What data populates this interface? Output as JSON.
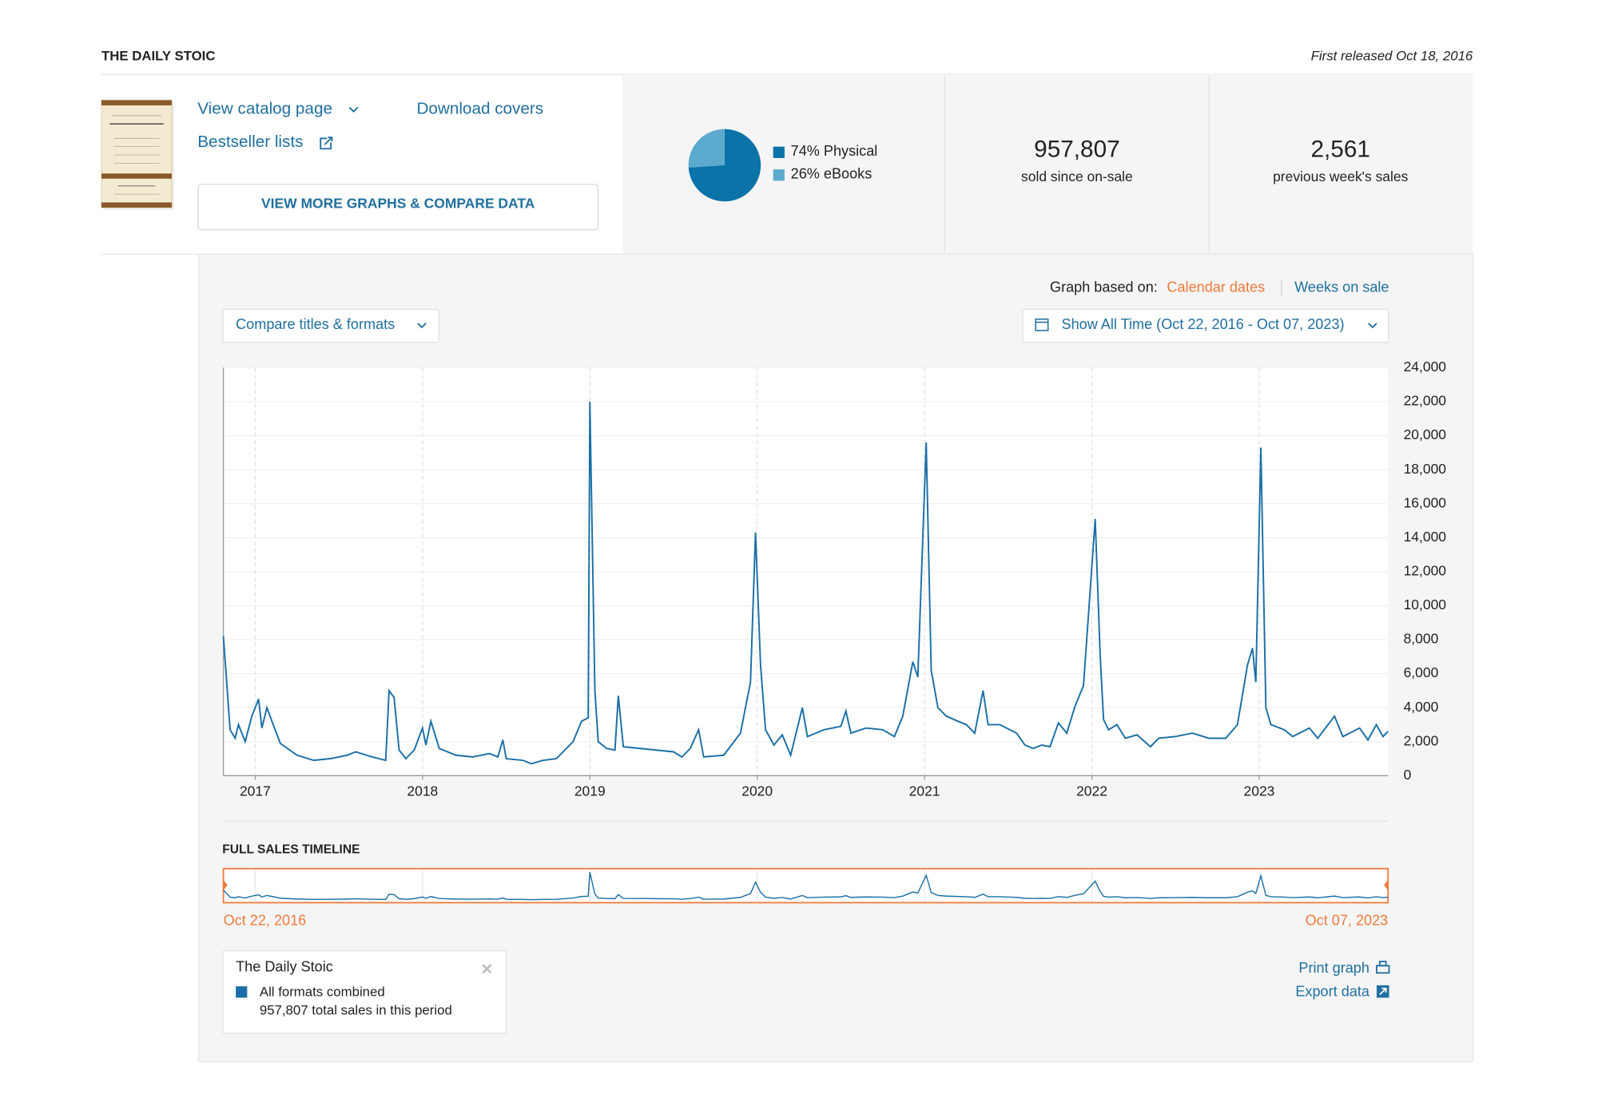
{
  "header": {
    "title": "THE DAILY STOIC",
    "released": "First released Oct 18, 2016"
  },
  "links": {
    "catalog": "View catalog page",
    "covers": "Download covers",
    "bestseller": "Bestseller lists",
    "compare_button": "VIEW MORE GRAPHS & COMPARE DATA"
  },
  "stats": [
    {
      "value": "957,807",
      "label": "sold since on-sale"
    },
    {
      "value": "2,561",
      "label": "previous week's sales"
    }
  ],
  "controls": {
    "graph_based_on": "Graph based on:",
    "calendar": "Calendar dates",
    "weeks": "Weeks on sale",
    "compare": "Compare titles & formats",
    "range": "Show All Time (Oct 22, 2016 - Oct 07, 2023)"
  },
  "timeline": {
    "title": "FULL SALES TIMELINE",
    "start": "Oct 22, 2016",
    "end": "Oct 07, 2023"
  },
  "legend": {
    "title": "The Daily Stoic",
    "total": "957,807 total sales in this period"
  },
  "actions": {
    "print": "Print graph",
    "export": "Export data"
  },
  "chart_data": [
    {
      "type": "pie",
      "categories": [
        "Physical",
        "eBooks"
      ],
      "values": [
        74,
        26
      ],
      "value_labels": [
        "74%",
        "26%"
      ],
      "colors": [
        "#0a73a8",
        "#5cabcf"
      ]
    },
    {
      "type": "line",
      "x": [
        2016.81,
        2016.85,
        2016.88,
        2016.9,
        2016.94,
        2016.98,
        2017.02,
        2017.04,
        2017.07,
        2017.1,
        2017.15,
        2017.25,
        2017.35,
        2017.45,
        2017.55,
        2017.6,
        2017.7,
        2017.78,
        2017.8,
        2017.83,
        2017.86,
        2017.9,
        2017.95,
        2018.0,
        2018.02,
        2018.05,
        2018.1,
        2018.2,
        2018.3,
        2018.4,
        2018.45,
        2018.48,
        2018.5,
        2018.6,
        2018.65,
        2018.72,
        2018.8,
        2018.9,
        2018.95,
        2018.99,
        2019.0,
        2019.03,
        2019.05,
        2019.1,
        2019.15,
        2019.17,
        2019.2,
        2019.3,
        2019.4,
        2019.5,
        2019.55,
        2019.6,
        2019.65,
        2019.68,
        2019.8,
        2019.9,
        2019.96,
        2019.99,
        2020.02,
        2020.05,
        2020.1,
        2020.15,
        2020.2,
        2020.27,
        2020.3,
        2020.4,
        2020.5,
        2020.53,
        2020.56,
        2020.65,
        2020.75,
        2020.82,
        2020.87,
        2020.93,
        2020.96,
        2021.01,
        2021.04,
        2021.08,
        2021.13,
        2021.2,
        2021.25,
        2021.3,
        2021.35,
        2021.38,
        2021.45,
        2021.55,
        2021.6,
        2021.65,
        2021.7,
        2021.75,
        2021.8,
        2021.85,
        2021.9,
        2021.95,
        2022.02,
        2022.05,
        2022.07,
        2022.1,
        2022.15,
        2022.2,
        2022.27,
        2022.35,
        2022.4,
        2022.5,
        2022.6,
        2022.7,
        2022.8,
        2022.87,
        2022.93,
        2022.96,
        2022.98,
        2023.01,
        2023.04,
        2023.07,
        2023.15,
        2023.2,
        2023.3,
        2023.35,
        2023.45,
        2023.5,
        2023.6,
        2023.65,
        2023.7,
        2023.74,
        2023.77
      ],
      "series": [
        {
          "name": "All formats combined",
          "color": "#1a6fa6",
          "values": [
            8200,
            2700,
            2200,
            3000,
            2000,
            3500,
            4500,
            2800,
            4000,
            3200,
            1900,
            1200,
            900,
            1000,
            1200,
            1400,
            1100,
            900,
            5000,
            4600,
            1500,
            1000,
            1500,
            2800,
            1800,
            3200,
            1600,
            1200,
            1100,
            1300,
            1100,
            2100,
            1000,
            900,
            700,
            900,
            1000,
            2000,
            3200,
            3400,
            22000,
            5000,
            2000,
            1600,
            1500,
            4700,
            1700,
            1600,
            1500,
            1400,
            1100,
            1600,
            2700,
            1100,
            1200,
            2500,
            5500,
            14300,
            6500,
            2700,
            1800,
            2400,
            1200,
            4000,
            2300,
            2700,
            2900,
            3800,
            2500,
            2800,
            2700,
            2300,
            3500,
            6700,
            5800,
            19600,
            6200,
            4000,
            3500,
            3200,
            3000,
            2500,
            5000,
            3000,
            3000,
            2500,
            1800,
            1600,
            1800,
            1700,
            3100,
            2500,
            4100,
            5300,
            15100,
            7000,
            3300,
            2700,
            3000,
            2200,
            2400,
            1700,
            2200,
            2300,
            2500,
            2200,
            2200,
            3000,
            6500,
            7500,
            5500,
            19300,
            4000,
            3000,
            2700,
            2300,
            2800,
            2200,
            3500,
            2300,
            2800,
            2100,
            3000,
            2300,
            2600
          ]
        }
      ],
      "xlim": [
        2016.81,
        2023.77
      ],
      "xticks": [
        2017,
        2018,
        2019,
        2020,
        2021,
        2022,
        2023
      ],
      "ylim": [
        0,
        24000
      ],
      "yticks": [
        0,
        {
          "value": 2000,
          "label": "2,000"
        },
        {
          "value": 4000,
          "label": "4,000"
        },
        {
          "value": 6000,
          "label": "6,000"
        },
        {
          "value": 8000,
          "label": "8,000"
        },
        {
          "value": 10000,
          "label": "10,000"
        },
        {
          "value": 12000,
          "label": "12,000"
        },
        {
          "value": 14000,
          "label": "14,000"
        },
        {
          "value": 16000,
          "label": "16,000"
        },
        {
          "value": 18000,
          "label": "18,000"
        },
        {
          "value": 20000,
          "label": "20,000"
        },
        {
          "value": 22000,
          "label": "22,000"
        },
        {
          "value": 24000,
          "label": "24,000"
        }
      ],
      "grid": true
    }
  ]
}
